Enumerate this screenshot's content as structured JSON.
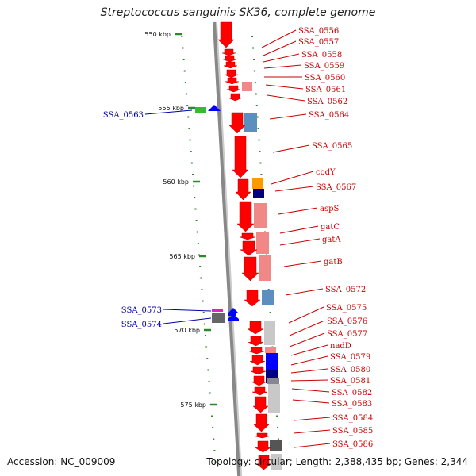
{
  "title": "Streptococcus sanguinis SK36, complete genome",
  "footer": {
    "accession": "Accession: NC_009009",
    "stats": "Topology: circular; Length: 2,388,435 bp; Genes: 2,344"
  },
  "colors": {
    "forward_gene": "#ff0000",
    "reverse_gene": "#0000ff",
    "forward_label": "#cc0000",
    "reverse_label": "#0000aa",
    "ruler_tick": "#2a8a2a",
    "backbone": "#888888"
  },
  "ruler": [
    {
      "label": "550 kbp"
    },
    {
      "label": "555 kbp"
    },
    {
      "label": "560 kbp"
    },
    {
      "label": "565 kbp"
    },
    {
      "label": "570 kbp"
    },
    {
      "label": "575 kbp"
    }
  ],
  "forward_genes": [
    {
      "label": "SSA_0556"
    },
    {
      "label": "SSA_0557"
    },
    {
      "label": "SSA_0558"
    },
    {
      "label": "SSA_0559"
    },
    {
      "label": "SSA_0560"
    },
    {
      "label": "SSA_0561"
    },
    {
      "label": "SSA_0562"
    },
    {
      "label": "SSA_0564"
    },
    {
      "label": "SSA_0565"
    },
    {
      "label": "codY"
    },
    {
      "label": "SSA_0567"
    },
    {
      "label": "aspS"
    },
    {
      "label": "gatC"
    },
    {
      "label": "gatA"
    },
    {
      "label": "gatB"
    },
    {
      "label": "SSA_0572"
    },
    {
      "label": "SSA_0575"
    },
    {
      "label": "SSA_0576"
    },
    {
      "label": "SSA_0577"
    },
    {
      "label": "nadD"
    },
    {
      "label": "SSA_0579"
    },
    {
      "label": "SSA_0580"
    },
    {
      "label": "SSA_0581"
    },
    {
      "label": "SSA_0582"
    },
    {
      "label": "SSA_0583"
    },
    {
      "label": "SSA_0584"
    },
    {
      "label": "SSA_0585"
    },
    {
      "label": "SSA_0586"
    }
  ],
  "reverse_genes": [
    {
      "label": "SSA_0563"
    },
    {
      "label": "SSA_0573"
    },
    {
      "label": "SSA_0574"
    }
  ]
}
